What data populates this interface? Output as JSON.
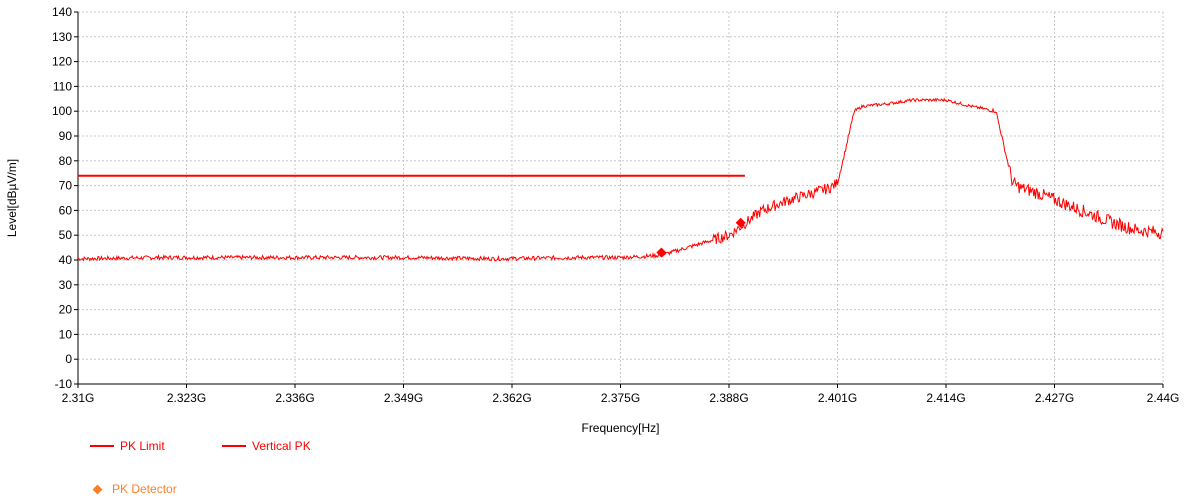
{
  "chart_data": {
    "type": "line",
    "title": "",
    "xlabel": "Frequency[Hz]",
    "ylabel": "Level[dBµV/m]",
    "xlim": [
      2.31,
      2.44
    ],
    "ylim": [
      -10,
      140
    ],
    "x_unit": "GHz",
    "x_ticks": [
      2.31,
      2.323,
      2.336,
      2.349,
      2.362,
      2.375,
      2.388,
      2.401,
      2.414,
      2.427,
      2.44
    ],
    "x_tick_labels": [
      "2.31G",
      "2.323G",
      "2.336G",
      "2.349G",
      "2.362G",
      "2.375G",
      "2.388G",
      "2.401G",
      "2.414G",
      "2.427G",
      "2.44G"
    ],
    "y_ticks": [
      -10,
      0,
      10,
      20,
      30,
      40,
      50,
      60,
      70,
      80,
      90,
      100,
      110,
      120,
      130,
      140
    ],
    "grid": true,
    "legend_position": "bottom-left",
    "series": [
      {
        "name": "PK Limit",
        "color": "#ff0000",
        "x": [
          2.31,
          2.3899
        ],
        "y": [
          74,
          74
        ]
      },
      {
        "name": "Vertical PK",
        "color": "#ff0000",
        "x": [
          2.31,
          2.32,
          2.33,
          2.34,
          2.35,
          2.36,
          2.37,
          2.375,
          2.378,
          2.38,
          2.382,
          2.385,
          2.388,
          2.39,
          2.392,
          2.395,
          2.398,
          2.4,
          2.401,
          2.402,
          2.403,
          2.404,
          2.407,
          2.41,
          2.413,
          2.414,
          2.417,
          2.42,
          2.421,
          2.422,
          2.423,
          2.425,
          2.428,
          2.431,
          2.434,
          2.437,
          2.44
        ],
        "y": [
          40.5,
          41,
          41,
          41,
          41,
          40.5,
          41,
          41,
          41.5,
          42,
          44,
          47,
          50,
          55,
          60,
          64,
          67,
          69,
          71,
          85,
          100,
          102,
          103,
          104.5,
          104.5,
          104.5,
          102,
          100,
          85,
          71,
          69,
          67,
          63,
          59,
          55,
          52,
          51
        ]
      }
    ],
    "markers": {
      "name": "PK Detector",
      "color": "#ff7f27",
      "points": [
        {
          "x": 2.3799,
          "y": 43
        },
        {
          "x": 2.3894,
          "y": 55
        }
      ]
    }
  }
}
